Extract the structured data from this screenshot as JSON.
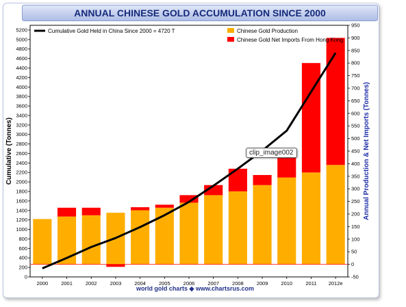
{
  "chart_data": {
    "type": "bar",
    "title": "ANNUAL CHINESE GOLD ACCUMULATION SINCE 2000",
    "categories": [
      "2000",
      "2001",
      "2002",
      "2003",
      "2004",
      "2005",
      "2006",
      "2007",
      "2008",
      "2009",
      "2010",
      "2011",
      "2012e"
    ],
    "series": [
      {
        "name": "Chinese Gold Production",
        "axis": "right",
        "values": [
          180,
          190,
          195,
          205,
          215,
          225,
          245,
          275,
          290,
          315,
          345,
          365,
          395
        ],
        "color": "#ffae00"
      },
      {
        "name": "Chinese Gold Net Imports From Hong Kong",
        "axis": "right",
        "values": [
          0,
          35,
          30,
          -10,
          12,
          12,
          30,
          40,
          90,
          40,
          95,
          435,
          505
        ],
        "color": "#ff0000"
      },
      {
        "name": "Cumulative Gold Held in China Since 2000 = 4720 T",
        "axis": "left",
        "type": "line",
        "values": [
          180,
          400,
          630,
          820,
          1050,
          1300,
          1580,
          1920,
          2280,
          2660,
          3080,
          3900,
          4720
        ],
        "color": "#000000"
      }
    ],
    "ylabel": "Cumulative (Tonnes)",
    "y2label": "Annual Production & Net Imports (Tonnes)",
    "ylim": [
      0,
      5300
    ],
    "yticks": [
      "0",
      "200",
      "400",
      "600",
      "800",
      "1000",
      "1200",
      "1400",
      "1600",
      "1800",
      "2000",
      "2200",
      "2400",
      "2600",
      "2800",
      "3000",
      "3200",
      "3400",
      "3600",
      "3800",
      "4000",
      "4200",
      "4400",
      "4600",
      "4800",
      "5000",
      "5200"
    ],
    "y2lim": [
      -50,
      950
    ],
    "y2ticks": [
      "-50",
      "0",
      "50",
      "100",
      "150",
      "200",
      "250",
      "300",
      "350",
      "400",
      "450",
      "500",
      "550",
      "600",
      "650",
      "700",
      "750",
      "800",
      "850",
      "900",
      "950"
    ],
    "grid": false,
    "legend_position": "top"
  },
  "credit": "world gold charts ◆ www.chartsrus.com",
  "callout": "clip_image002"
}
